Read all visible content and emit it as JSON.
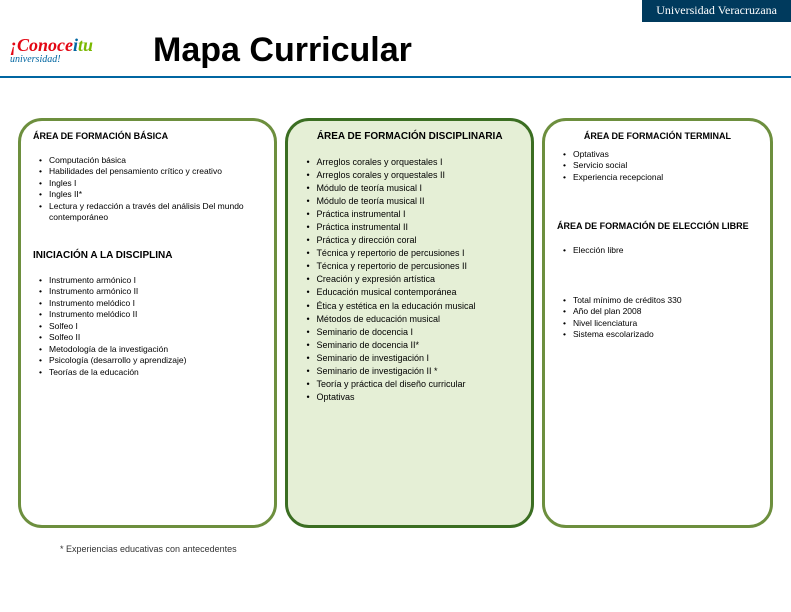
{
  "header": {
    "university": "Universidad Veracruzana",
    "logo_line1_a": "¡Conoce",
    "logo_line1_b": "i",
    "logo_line1_c": "tu",
    "logo_line2": "universidad!",
    "title": "Mapa Curricular"
  },
  "col1": {
    "title1": "ÁREA DE FORMACIÓN BÁSICA",
    "items1": [
      "Computación básica",
      "Habilidades del pensamiento crítico y creativo",
      "Ingles I",
      "Ingles II*",
      "Lectura y redacción a través del análisis Del mundo contemporáneo"
    ],
    "title2": "INICIACIÓN A LA DISCIPLINA",
    "items2": [
      "Instrumento armónico I",
      "Instrumento armónico II",
      "Instrumento melódico I",
      "Instrumento melódico II",
      "Solfeo I",
      "Solfeo II",
      "Metodología de la investigación",
      "Psicología (desarrollo y aprendizaje)",
      "Teorías de la educación"
    ]
  },
  "col2": {
    "title": "ÁREA DE FORMACIÓN DISCIPLINARIA",
    "items": [
      "Arreglos corales y orquestales I",
      "Arreglos corales y orquestales II",
      "Módulo de teoría musical I",
      "Módulo de teoría musical II",
      "Práctica instrumental I",
      "Práctica instrumental II",
      "Práctica y dirección coral",
      "Técnica y repertorio de percusiones I",
      "Técnica y repertorio de percusiones II",
      "Creación y expresión artística",
      "Educación musical contemporánea",
      "Ética y estética en la educación musical",
      "Métodos de educación musical",
      "Seminario de docencia I",
      "Seminario de docencia II*",
      "Seminario de investigación I",
      "Seminario de investigación II *",
      "Teoría y práctica del diseño curricular",
      "Optativas"
    ]
  },
  "col3": {
    "title1": "ÁREA DE FORMACIÓN TERMINAL",
    "items1": [
      "Optativas",
      "Servicio social",
      "Experiencia recepcional"
    ],
    "title2": "ÁREA DE FORMACIÓN DE ELECCIÓN LIBRE",
    "items2": [
      "Elección libre"
    ],
    "items3": [
      "Total mínimo de créditos 330",
      "Año del plan 2008",
      "Nivel licenciatura",
      "Sistema escolarizado"
    ]
  },
  "footnote": "* Experiencias educativas con antecedentes"
}
